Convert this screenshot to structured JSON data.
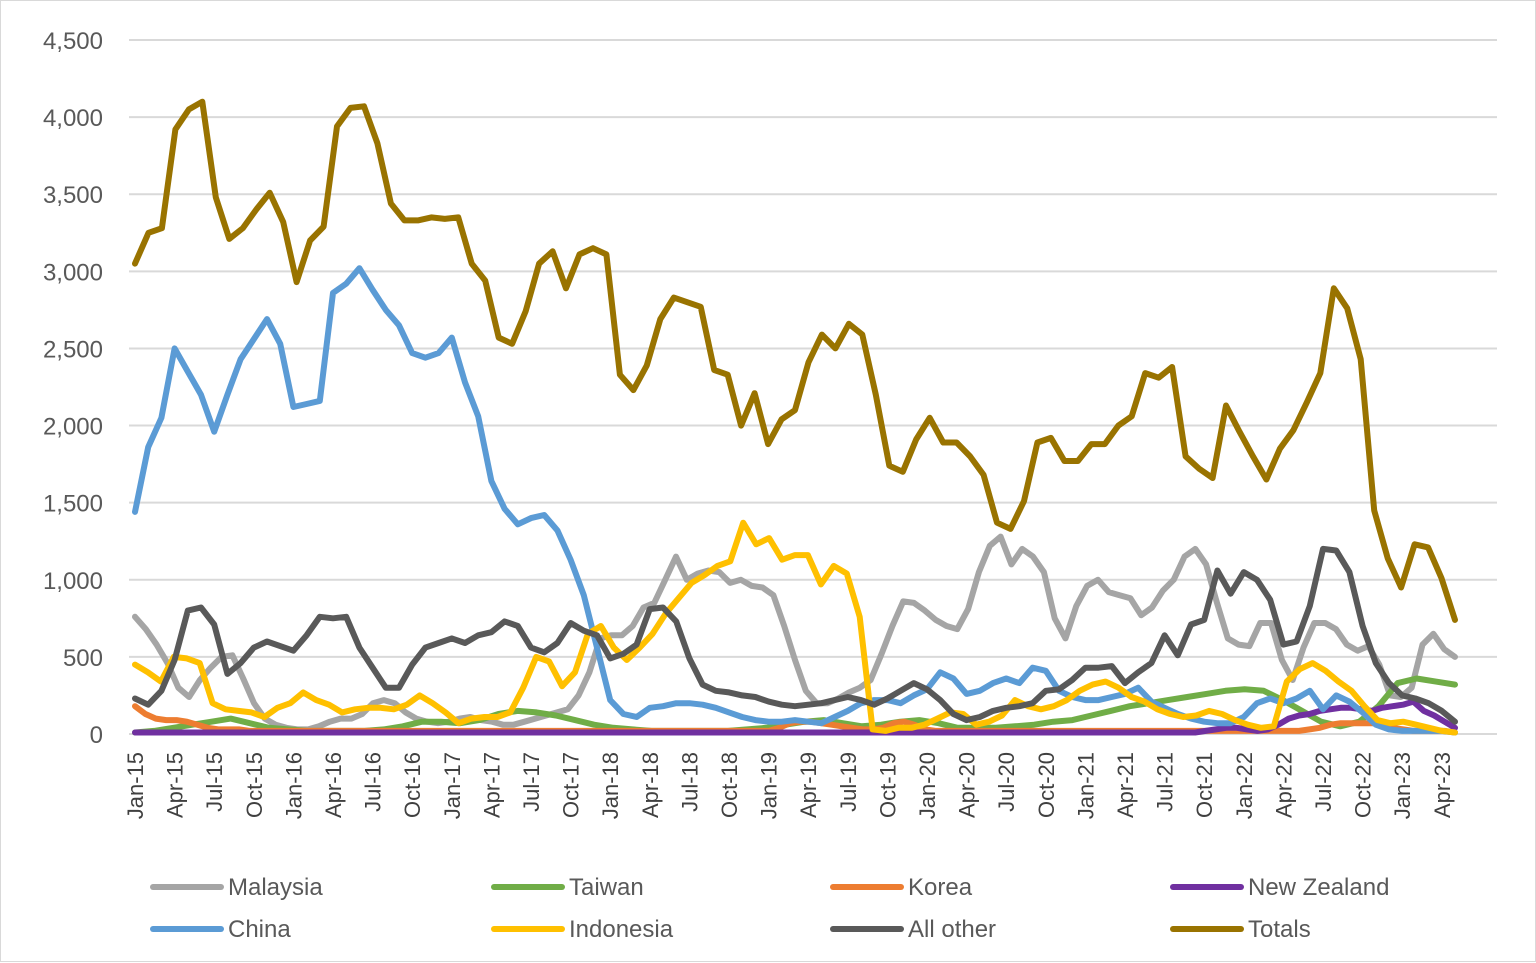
{
  "chart_data": {
    "type": "line",
    "title": "",
    "xlabel": "",
    "ylabel": "",
    "ylim": [
      0,
      4500
    ],
    "yticks": [
      0,
      500,
      1000,
      1500,
      2000,
      2500,
      3000,
      3500,
      4000,
      4500
    ],
    "ytick_labels": [
      "0",
      "500",
      "1,000",
      "1,500",
      "2,000",
      "2,500",
      "3,000",
      "3,500",
      "4,000",
      "4,500"
    ],
    "xtick_labels": [
      "Jan-15",
      "Apr-15",
      "Jul-15",
      "Oct-15",
      "Jan-16",
      "Apr-16",
      "Jul-16",
      "Oct-16",
      "Jan-17",
      "Apr-17",
      "Jul-17",
      "Oct-17",
      "Jan-18",
      "Apr-18",
      "Jul-18",
      "Oct-18",
      "Jan-19",
      "Apr-19",
      "Jul-19",
      "Oct-19",
      "Jan-20",
      "Apr-20",
      "Jul-20",
      "Oct-20",
      "Jan-21",
      "Apr-21",
      "Jul-21",
      "Oct-21",
      "Jan-22",
      "Apr-22",
      "Jul-22",
      "Oct-22",
      "Jan-23",
      "Apr-23"
    ],
    "grid": "horizontal",
    "legend_position": "bottom",
    "series": [
      {
        "name": "Malaysia",
        "color": "#a5a5a5",
        "values": [
          760,
          680,
          580,
          460,
          300,
          240,
          350,
          430,
          500,
          510,
          360,
          200,
          100,
          60,
          40,
          30,
          30,
          50,
          80,
          100,
          100,
          130,
          200,
          220,
          200,
          140,
          100,
          80,
          70,
          80,
          100,
          110,
          90,
          80,
          60,
          60,
          80,
          100,
          120,
          140,
          160,
          250,
          400,
          620,
          640,
          640,
          700,
          820,
          850,
          1000,
          1150,
          1000,
          1040,
          1060,
          1050,
          980,
          1000,
          960,
          950,
          900,
          700,
          480,
          280,
          200,
          200,
          230,
          270,
          300,
          350,
          520,
          700,
          860,
          850,
          800,
          740,
          700,
          680,
          810,
          1050,
          1220,
          1280,
          1100,
          1200,
          1150,
          1050,
          750,
          620,
          830,
          960,
          1000,
          920,
          900,
          880,
          770,
          820,
          930,
          1000,
          1150,
          1200,
          1100,
          850,
          620,
          580,
          570,
          720,
          720,
          480,
          350,
          560,
          720,
          720,
          680,
          580,
          540,
          570,
          450,
          250,
          240,
          300,
          580,
          650,
          550,
          500
        ]
      },
      {
        "name": "Taiwan",
        "color": "#70ad47",
        "values": [
          10,
          20,
          40,
          60,
          80,
          100,
          70,
          40,
          30,
          20,
          20,
          20,
          20,
          30,
          50,
          80,
          80,
          70,
          90,
          130,
          150,
          140,
          120,
          90,
          60,
          40,
          30,
          20,
          20,
          20,
          20,
          20,
          30,
          40,
          60,
          80,
          90,
          70,
          50,
          60,
          80,
          90,
          70,
          40,
          40,
          40,
          50,
          60,
          80,
          90,
          120,
          150,
          180,
          200,
          220,
          240,
          260,
          280,
          290,
          280,
          220,
          150,
          80,
          50,
          80,
          180,
          330,
          360,
          340,
          320
        ]
      },
      {
        "name": "Korea",
        "color": "#ed7d31",
        "values": [
          180,
          130,
          100,
          90,
          90,
          80,
          60,
          40,
          30,
          30,
          30,
          20,
          20,
          20,
          20,
          20,
          20,
          20,
          20,
          20,
          20,
          20,
          20,
          20,
          20,
          20,
          20,
          20,
          20,
          20,
          20,
          20,
          20,
          20,
          20,
          20,
          20,
          20,
          20,
          20,
          20,
          20,
          20,
          20,
          20,
          20,
          20,
          20,
          20,
          20,
          20,
          20,
          20,
          20,
          20,
          20,
          20,
          20,
          20,
          20,
          20,
          20,
          40,
          70,
          80,
          80,
          70,
          60,
          50,
          40,
          30,
          30,
          40,
          70,
          80,
          60,
          30,
          20,
          20,
          20,
          20,
          20,
          20,
          20,
          20,
          20,
          20,
          20,
          20,
          20,
          20,
          20,
          20,
          20,
          20,
          20,
          20,
          20,
          20,
          20,
          20,
          20,
          20,
          20,
          20,
          20,
          20,
          20,
          20,
          20,
          20,
          20,
          20,
          30,
          40,
          60,
          70,
          70,
          70,
          70,
          60,
          40,
          30,
          20,
          20,
          20,
          20,
          10
        ]
      },
      {
        "name": "New Zealand",
        "color": "#7030a0",
        "values": [
          10,
          10,
          10,
          10,
          10,
          10,
          10,
          10,
          10,
          10,
          10,
          10,
          10,
          10,
          10,
          10,
          10,
          10,
          10,
          10,
          10,
          10,
          10,
          10,
          10,
          10,
          10,
          10,
          10,
          10,
          10,
          10,
          10,
          10,
          10,
          10,
          10,
          10,
          10,
          10,
          10,
          10,
          10,
          10,
          10,
          10,
          10,
          10,
          10,
          10,
          10,
          10,
          10,
          10,
          10,
          10,
          10,
          10,
          10,
          10,
          10,
          10,
          10,
          10,
          10,
          10,
          10,
          10,
          10,
          10,
          10,
          10,
          10,
          10,
          10,
          10,
          10,
          10,
          10,
          10,
          10,
          10,
          10,
          10,
          10,
          10,
          10,
          10,
          10,
          10,
          10,
          10,
          10,
          10,
          10,
          10,
          10,
          10,
          10,
          10,
          10,
          10,
          10,
          20,
          30,
          40,
          40,
          30,
          20,
          30,
          60,
          100,
          120,
          130,
          150,
          160,
          170,
          170,
          160,
          150,
          170,
          180,
          190,
          210,
          150,
          120,
          80,
          40
        ]
      },
      {
        "name": "China",
        "color": "#5b9bd5",
        "values": [
          1440,
          1860,
          2050,
          2500,
          2350,
          2200,
          1960,
          2200,
          2430,
          2560,
          2690,
          2530,
          2120,
          2140,
          2160,
          2860,
          2920,
          3020,
          2880,
          2750,
          2650,
          2470,
          2440,
          2470,
          2570,
          2280,
          2060,
          1640,
          1460,
          1360,
          1400,
          1420,
          1320,
          1130,
          900,
          560,
          220,
          130,
          110,
          170,
          180,
          200,
          200,
          190,
          170,
          140,
          110,
          90,
          80,
          80,
          90,
          80,
          70,
          110,
          150,
          200,
          220,
          220,
          200,
          250,
          290,
          400,
          360,
          260,
          280,
          330,
          360,
          330,
          430,
          410,
          280,
          240,
          220,
          220,
          240,
          260,
          300,
          210,
          170,
          130,
          100,
          80,
          70,
          70,
          110,
          200,
          230,
          200,
          230,
          280,
          160,
          250,
          210,
          140,
          60,
          30,
          20,
          20,
          20,
          20,
          10
        ]
      },
      {
        "name": "Indonesia",
        "color": "#ffc000",
        "values": [
          450,
          400,
          340,
          500,
          490,
          460,
          200,
          160,
          150,
          140,
          110,
          170,
          200,
          270,
          220,
          190,
          140,
          160,
          170,
          170,
          160,
          190,
          250,
          200,
          140,
          70,
          100,
          110,
          110,
          140,
          300,
          500,
          470,
          310,
          400,
          650,
          700,
          560,
          480,
          560,
          650,
          780,
          880,
          980,
          1030,
          1090,
          1120,
          1370,
          1230,
          1270,
          1130,
          1160,
          1160,
          970,
          1090,
          1040,
          760,
          30,
          20,
          40,
          40,
          60,
          100,
          140,
          130,
          60,
          80,
          120,
          220,
          180,
          160,
          180,
          220,
          280,
          320,
          340,
          300,
          240,
          210,
          160,
          130,
          110,
          120,
          150,
          130,
          90,
          60,
          40,
          50,
          340,
          420,
          460,
          410,
          340,
          280,
          180,
          90,
          70,
          80,
          60,
          40,
          20,
          10
        ]
      },
      {
        "name": "All other",
        "color": "#595959",
        "values": [
          230,
          190,
          280,
          480,
          800,
          820,
          710,
          390,
          460,
          560,
          600,
          570,
          540,
          640,
          760,
          750,
          760,
          560,
          430,
          300,
          300,
          450,
          560,
          590,
          620,
          590,
          640,
          660,
          730,
          700,
          560,
          530,
          590,
          720,
          670,
          640,
          490,
          520,
          580,
          810,
          820,
          730,
          490,
          320,
          280,
          270,
          250,
          240,
          210,
          190,
          180,
          190,
          200,
          220,
          240,
          220,
          190,
          230,
          280,
          330,
          290,
          220,
          130,
          90,
          110,
          150,
          170,
          180,
          200,
          280,
          290,
          350,
          430,
          430,
          440,
          330,
          400,
          460,
          640,
          510,
          710,
          740,
          1060,
          910,
          1050,
          1000,
          870,
          580,
          600,
          830,
          1200,
          1190,
          1050,
          700,
          460,
          330,
          250,
          230,
          200,
          150,
          80
        ]
      },
      {
        "name": "Totals",
        "color": "#997300",
        "values": [
          3050,
          3250,
          3280,
          3920,
          4050,
          4100,
          3480,
          3210,
          3280,
          3400,
          3510,
          3320,
          2930,
          3200,
          3290,
          3940,
          4060,
          4070,
          3830,
          3440,
          3330,
          3330,
          3350,
          3340,
          3350,
          3050,
          2940,
          2570,
          2530,
          2740,
          3050,
          3130,
          2890,
          3110,
          3150,
          3110,
          2330,
          2230,
          2390,
          2690,
          2830,
          2800,
          2770,
          2360,
          2330,
          2000,
          2210,
          1880,
          2040,
          2100,
          2410,
          2590,
          2500,
          2660,
          2590,
          2200,
          1740,
          1700,
          1910,
          2050,
          1890,
          1890,
          1800,
          1680,
          1370,
          1330,
          1510,
          1890,
          1920,
          1770,
          1770,
          1880,
          1880,
          2000,
          2060,
          2340,
          2310,
          2380,
          1800,
          1720,
          1660,
          2130,
          1960,
          1800,
          1650,
          1850,
          1970,
          2150,
          2340,
          2890,
          2760,
          2430,
          1450,
          1140,
          950,
          1230,
          1210,
          1010,
          740
        ]
      }
    ]
  }
}
